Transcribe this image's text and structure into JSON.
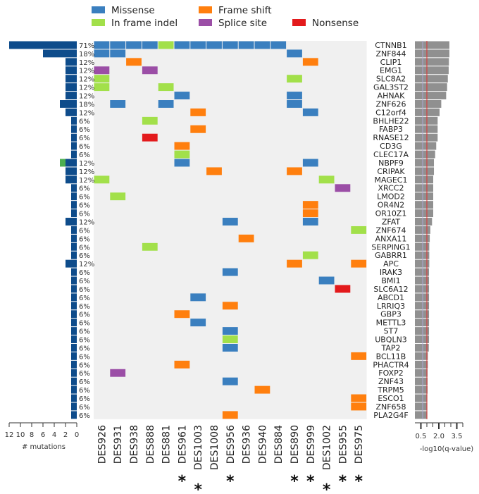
{
  "chart_data": {
    "type": "heatmap",
    "title": "",
    "legend": {
      "placement": "top",
      "items": [
        {
          "key": "M",
          "label": "Missense",
          "color": "#3a7fbf"
        },
        {
          "key": "F",
          "label": "Frame shift",
          "color": "#ff7f0e"
        },
        {
          "key": "I",
          "label": "In frame indel",
          "color": "#a2e04a"
        },
        {
          "key": "S",
          "label": "Splice site",
          "color": "#9b4ea6"
        },
        {
          "key": "N",
          "label": "Nonsense",
          "color": "#e31a1c"
        }
      ]
    },
    "samples": [
      "DES926",
      "DES931",
      "DES938",
      "DES888",
      "DES881",
      "DES961",
      "DES1003",
      "DES1008",
      "DES956",
      "DES936",
      "DES940",
      "DES884",
      "DES890",
      "DES999",
      "DES1002",
      "DES955",
      "DES975"
    ],
    "starred_samples": [
      "DES961",
      "DES1003",
      "DES956",
      "DES890",
      "DES999",
      "DES1002",
      "DES955",
      "DES975"
    ],
    "star_symbol": "*",
    "genes": [
      {
        "gene": "CTNNB1",
        "pct": "71%",
        "n_mut": 12,
        "q": 2.88,
        "muts": [
          [
            0,
            "M"
          ],
          [
            1,
            "M"
          ],
          [
            2,
            "M"
          ],
          [
            3,
            "M"
          ],
          [
            4,
            "I"
          ],
          [
            5,
            "M"
          ],
          [
            6,
            "M"
          ],
          [
            7,
            "M"
          ],
          [
            8,
            "M"
          ],
          [
            9,
            "M"
          ],
          [
            10,
            "M"
          ],
          [
            11,
            "M"
          ]
        ]
      },
      {
        "gene": "ZNF844",
        "pct": "18%",
        "n_mut": 6,
        "q": 2.88,
        "muts": [
          [
            0,
            "M"
          ],
          [
            1,
            "M"
          ],
          [
            12,
            "M"
          ]
        ]
      },
      {
        "gene": "CLIP1",
        "pct": "12%",
        "n_mut": 2,
        "q": 2.84,
        "muts": [
          [
            2,
            "F"
          ],
          [
            13,
            "F"
          ]
        ]
      },
      {
        "gene": "EMG1",
        "pct": "12%",
        "n_mut": 2,
        "q": 2.82,
        "muts": [
          [
            0,
            "S"
          ],
          [
            3,
            "S"
          ]
        ]
      },
      {
        "gene": "SLC8A2",
        "pct": "12%",
        "n_mut": 2,
        "q": 2.75,
        "muts": [
          [
            0,
            "I"
          ],
          [
            12,
            "I"
          ]
        ]
      },
      {
        "gene": "GAL3ST2",
        "pct": "12%",
        "n_mut": 2,
        "q": 2.69,
        "muts": [
          [
            0,
            "I"
          ],
          [
            4,
            "I"
          ]
        ]
      },
      {
        "gene": "AHNAK",
        "pct": "12%",
        "n_mut": 2,
        "q": 2.61,
        "muts": [
          [
            5,
            "M"
          ],
          [
            12,
            "M"
          ]
        ]
      },
      {
        "gene": "ZNF626",
        "pct": "18%",
        "n_mut": 3,
        "q": 2.2,
        "muts": [
          [
            1,
            "M"
          ],
          [
            4,
            "M"
          ],
          [
            12,
            "M"
          ]
        ]
      },
      {
        "gene": "C12orf4",
        "pct": "12%",
        "n_mut": 2,
        "q": 2.06,
        "muts": [
          [
            6,
            "F"
          ],
          [
            13,
            "M"
          ]
        ]
      },
      {
        "gene": "BHLHE22",
        "pct": "6%",
        "n_mut": 1,
        "q": 1.9,
        "muts": [
          [
            3,
            "I"
          ]
        ]
      },
      {
        "gene": "FABP3",
        "pct": "6%",
        "n_mut": 1,
        "q": 1.9,
        "muts": [
          [
            6,
            "F"
          ]
        ]
      },
      {
        "gene": "RNASE12",
        "pct": "6%",
        "n_mut": 1,
        "q": 1.9,
        "muts": [
          [
            3,
            "N"
          ]
        ]
      },
      {
        "gene": "CD3G",
        "pct": "6%",
        "n_mut": 1,
        "q": 1.78,
        "muts": [
          [
            5,
            "F"
          ]
        ]
      },
      {
        "gene": "CLEC17A",
        "pct": "6%",
        "n_mut": 1,
        "q": 1.69,
        "muts": [
          [
            5,
            "I"
          ]
        ]
      },
      {
        "gene": "NBPF9",
        "pct": "12%",
        "n_mut": 2,
        "n_extra": 1,
        "q": 1.59,
        "muts": [
          [
            5,
            "M"
          ],
          [
            13,
            "M"
          ]
        ]
      },
      {
        "gene": "CRIPAK",
        "pct": "12%",
        "n_mut": 2,
        "q": 1.59,
        "muts": [
          [
            7,
            "F"
          ],
          [
            12,
            "F"
          ]
        ]
      },
      {
        "gene": "MAGEC1",
        "pct": "12%",
        "n_mut": 2,
        "q": 1.53,
        "muts": [
          [
            0,
            "I"
          ],
          [
            14,
            "I"
          ]
        ]
      },
      {
        "gene": "XRCC2",
        "pct": "6%",
        "n_mut": 1,
        "q": 1.53,
        "muts": [
          [
            15,
            "S"
          ]
        ]
      },
      {
        "gene": "LMOD2",
        "pct": "6%",
        "n_mut": 1,
        "q": 1.53,
        "muts": [
          [
            1,
            "I"
          ]
        ]
      },
      {
        "gene": "OR4N2",
        "pct": "6%",
        "n_mut": 1,
        "q": 1.53,
        "muts": [
          [
            13,
            "F"
          ]
        ]
      },
      {
        "gene": "OR10Z1",
        "pct": "6%",
        "n_mut": 1,
        "q": 1.53,
        "muts": [
          [
            13,
            "F"
          ]
        ]
      },
      {
        "gene": "ZFAT",
        "pct": "12%",
        "n_mut": 2,
        "q": 1.43,
        "muts": [
          [
            8,
            "M"
          ],
          [
            13,
            "M"
          ]
        ]
      },
      {
        "gene": "ZNF674",
        "pct": "6%",
        "n_mut": 1,
        "q": 1.29,
        "muts": [
          [
            16,
            "I"
          ]
        ]
      },
      {
        "gene": "ANXA11",
        "pct": "6%",
        "n_mut": 1,
        "q": 1.24,
        "muts": [
          [
            9,
            "F"
          ]
        ]
      },
      {
        "gene": "SERPING1",
        "pct": "6%",
        "n_mut": 1,
        "q": 1.2,
        "muts": [
          [
            3,
            "I"
          ]
        ]
      },
      {
        "gene": "GABRR1",
        "pct": "6%",
        "n_mut": 1,
        "q": 1.2,
        "muts": [
          [
            13,
            "I"
          ]
        ]
      },
      {
        "gene": "APC",
        "pct": "12%",
        "n_mut": 2,
        "q": 1.2,
        "muts": [
          [
            12,
            "F"
          ],
          [
            16,
            "F"
          ]
        ]
      },
      {
        "gene": "IRAK3",
        "pct": "6%",
        "n_mut": 1,
        "q": 1.18,
        "muts": [
          [
            8,
            "M"
          ]
        ]
      },
      {
        "gene": "BMI1",
        "pct": "6%",
        "n_mut": 1,
        "q": 1.18,
        "muts": [
          [
            14,
            "M"
          ]
        ]
      },
      {
        "gene": "SLC6A12",
        "pct": "6%",
        "n_mut": 1,
        "q": 1.18,
        "muts": [
          [
            15,
            "N"
          ]
        ]
      },
      {
        "gene": "ABCD1",
        "pct": "6%",
        "n_mut": 1,
        "q": 1.18,
        "muts": [
          [
            6,
            "M"
          ]
        ]
      },
      {
        "gene": "LRRIQ3",
        "pct": "6%",
        "n_mut": 1,
        "q": 1.18,
        "muts": [
          [
            8,
            "F"
          ]
        ]
      },
      {
        "gene": "GBP3",
        "pct": "6%",
        "n_mut": 1,
        "q": 1.18,
        "muts": [
          [
            5,
            "F"
          ]
        ]
      },
      {
        "gene": "METTL3",
        "pct": "6%",
        "n_mut": 1,
        "q": 1.18,
        "muts": [
          [
            6,
            "M"
          ]
        ]
      },
      {
        "gene": "ST7",
        "pct": "6%",
        "n_mut": 1,
        "q": 1.18,
        "muts": [
          [
            8,
            "M"
          ]
        ]
      },
      {
        "gene": "UBQLN3",
        "pct": "6%",
        "n_mut": 1,
        "q": 1.18,
        "muts": [
          [
            8,
            "I"
          ]
        ]
      },
      {
        "gene": "TAP2",
        "pct": "6%",
        "n_mut": 1,
        "q": 1.16,
        "muts": [
          [
            8,
            "M"
          ]
        ]
      },
      {
        "gene": "BCL11B",
        "pct": "6%",
        "n_mut": 1,
        "q": 1.08,
        "muts": [
          [
            16,
            "F"
          ]
        ]
      },
      {
        "gene": "PHACTR4",
        "pct": "6%",
        "n_mut": 1,
        "q": 1.08,
        "muts": [
          [
            5,
            "F"
          ]
        ]
      },
      {
        "gene": "FOXP2",
        "pct": "6%",
        "n_mut": 1,
        "q": 1.06,
        "muts": [
          [
            1,
            "S"
          ]
        ]
      },
      {
        "gene": "ZNF43",
        "pct": "6%",
        "n_mut": 1,
        "q": 1.06,
        "muts": [
          [
            8,
            "M"
          ]
        ]
      },
      {
        "gene": "TRPM5",
        "pct": "6%",
        "n_mut": 1,
        "q": 1.06,
        "muts": [
          [
            10,
            "F"
          ]
        ]
      },
      {
        "gene": "ESCO1",
        "pct": "6%",
        "n_mut": 1,
        "q": 1.04,
        "muts": [
          [
            16,
            "F"
          ]
        ]
      },
      {
        "gene": "ZNF658",
        "pct": "6%",
        "n_mut": 1,
        "q": 1.04,
        "muts": [
          [
            16,
            "F"
          ]
        ]
      },
      {
        "gene": "PLA2G4F",
        "pct": "6%",
        "n_mut": 1,
        "q": 1.04,
        "muts": [
          [
            8,
            "F"
          ]
        ]
      }
    ],
    "left_axis": {
      "label": "# mutations",
      "ticks": [
        "12",
        "10",
        "8",
        "6",
        "4",
        "2",
        "0"
      ],
      "range": [
        0,
        12
      ],
      "bar_color": "#0e4c8b",
      "extra_color": "#4caf50"
    },
    "right_axis": {
      "label": "-log10(q-value)",
      "ticks": [
        "0.5",
        "2.0",
        "3.5"
      ],
      "range": [
        0,
        4.0
      ],
      "threshold": 1.0,
      "threshold_color": "#e03030",
      "bar_color": "#909090"
    },
    "grid_background": "#f0f0f0"
  }
}
